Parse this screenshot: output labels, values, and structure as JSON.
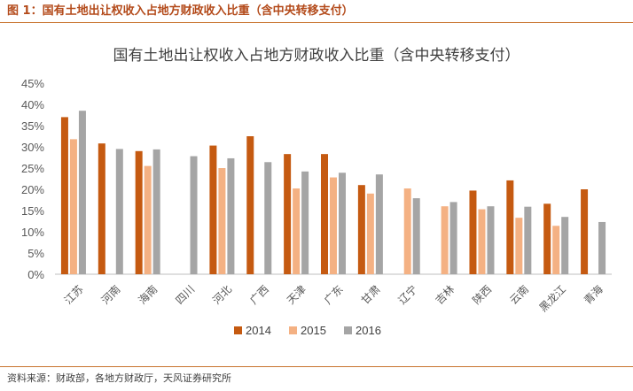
{
  "header": {
    "figure_title": "图 1：国有土地出让权收入占地方财政收入比重（含中央转移支付）"
  },
  "chart_data": {
    "type": "bar",
    "title": "国有土地出让权收入占地方财政收入比重（含中央转移支付）",
    "xlabel": "",
    "ylabel": "",
    "ylim": [
      0,
      45
    ],
    "y_ticks": [
      "0%",
      "5%",
      "10%",
      "15%",
      "20%",
      "25%",
      "30%",
      "35%",
      "40%",
      "45%"
    ],
    "grid": false,
    "legend_position": "bottom",
    "categories": [
      "江苏",
      "河南",
      "海南",
      "四川",
      "河北",
      "广西",
      "天津",
      "广东",
      "甘肃",
      "辽宁",
      "吉林",
      "陕西",
      "云南",
      "黑龙江",
      "青海"
    ],
    "series": [
      {
        "name": "2014",
        "color": "#c55a11",
        "values": [
          37.0,
          30.8,
          29.0,
          null,
          30.3,
          32.5,
          28.3,
          28.3,
          21.0,
          null,
          null,
          19.7,
          22.1,
          16.6,
          20.0
        ]
      },
      {
        "name": "2015",
        "color": "#f4b183",
        "values": [
          31.8,
          null,
          25.5,
          null,
          25.0,
          null,
          20.2,
          22.8,
          19.0,
          20.2,
          16.0,
          15.3,
          13.3,
          11.4,
          null
        ]
      },
      {
        "name": "2016",
        "color": "#a5a5a5",
        "values": [
          38.5,
          29.5,
          29.4,
          27.8,
          27.3,
          26.4,
          24.2,
          23.9,
          23.5,
          17.9,
          17.0,
          16.0,
          15.9,
          13.5,
          12.3
        ]
      }
    ]
  },
  "footer": {
    "source": "资料来源：财政部，各地方财政厅，天风证券研究所"
  }
}
